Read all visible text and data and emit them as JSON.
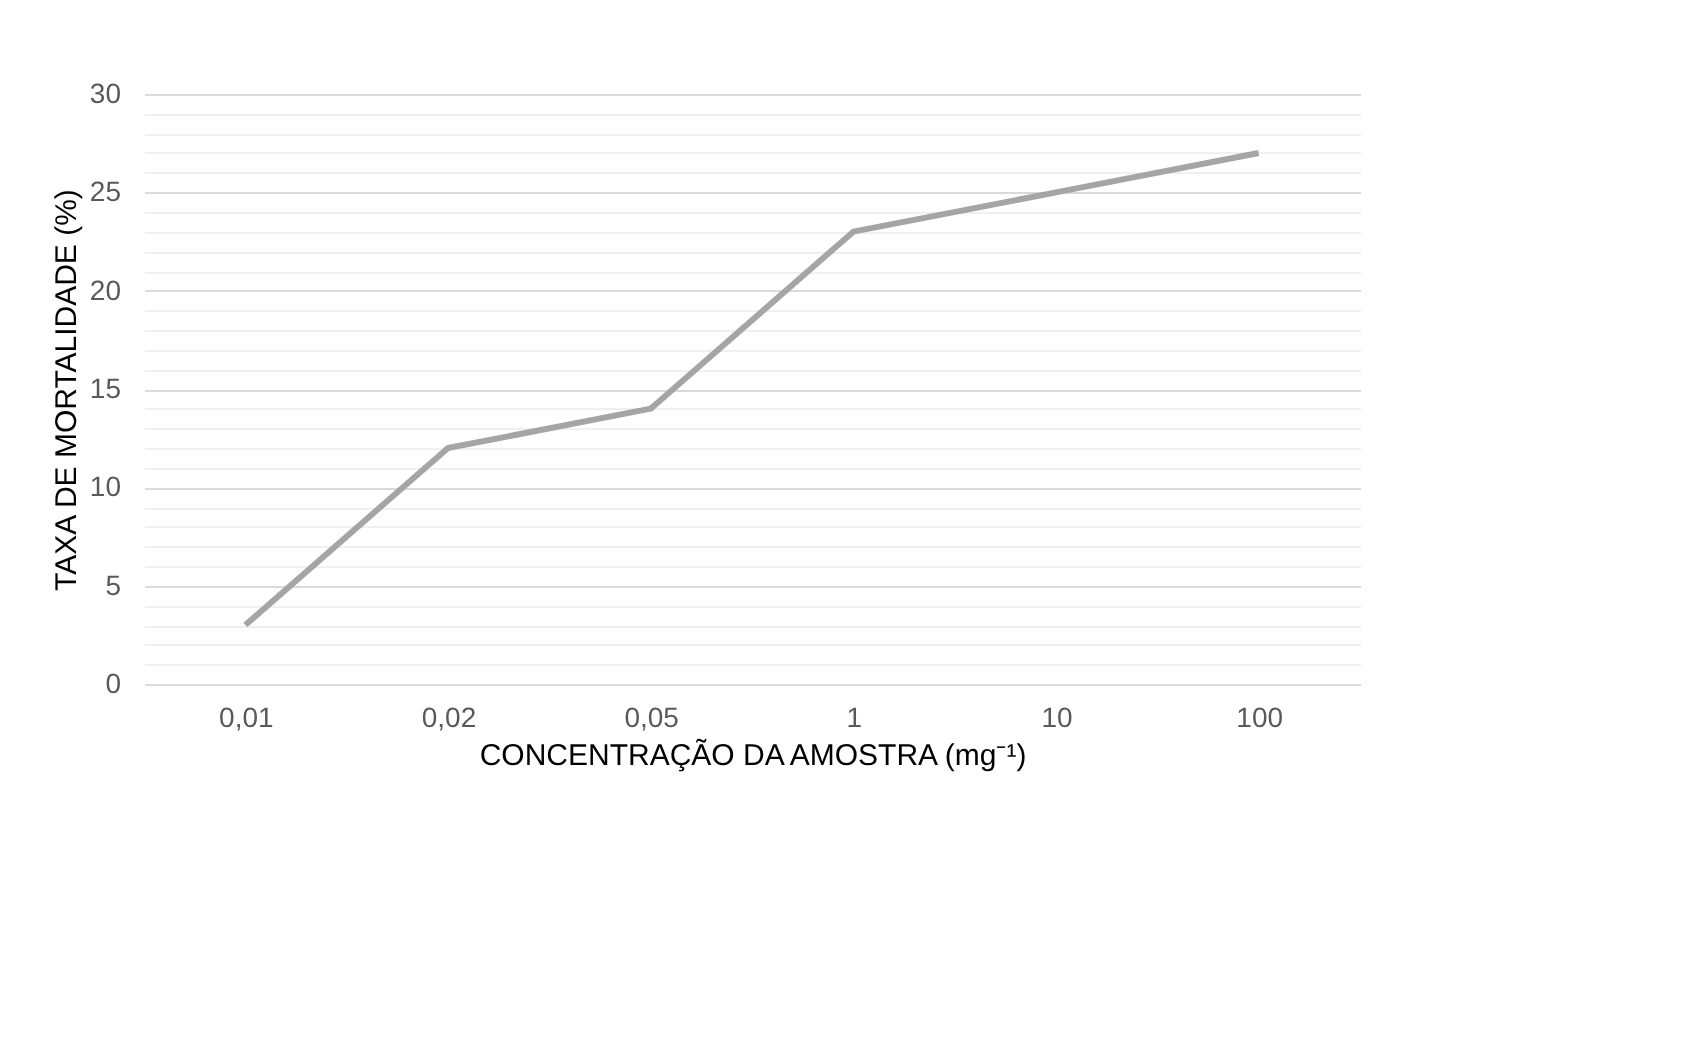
{
  "chart_data": {
    "type": "line",
    "xlabel": "CONCENTRAÇÃO DA AMOSTRA (mg⁻¹)",
    "ylabel": "TAXA DE MORTALIDADE (%)",
    "categories": [
      "0,01",
      "0,02",
      "0,05",
      "1",
      "10",
      "100"
    ],
    "series": [
      {
        "color": "#a5a5a5",
        "values": [
          3,
          12,
          14,
          23,
          25,
          27
        ]
      }
    ],
    "ylim": [
      0,
      30
    ],
    "yticks": [
      0,
      {
        "value": 1,
        "label": null
      },
      {
        "value": 2,
        "label": null
      },
      {
        "value": 3,
        "label": null
      },
      {
        "value": 4,
        "label": null
      },
      5,
      {
        "value": 6,
        "label": null
      },
      {
        "value": 7,
        "label": null
      },
      {
        "value": 8,
        "label": null
      },
      {
        "value": 9,
        "label": null
      },
      10,
      {
        "value": 11,
        "label": null
      },
      {
        "value": 12,
        "label": null
      },
      {
        "value": 13,
        "label": null
      },
      {
        "value": 14,
        "label": null
      },
      15,
      {
        "value": 16,
        "label": null
      },
      {
        "value": 17,
        "label": null
      },
      {
        "value": 18,
        "label": null
      },
      {
        "value": 19,
        "label": null
      },
      20,
      {
        "value": 21,
        "label": null
      },
      {
        "value": 22,
        "label": null
      },
      {
        "value": 23,
        "label": null
      },
      {
        "value": 24,
        "label": null
      },
      25,
      {
        "value": 26,
        "label": null
      },
      {
        "value": 27,
        "label": null
      },
      {
        "value": 28,
        "label": null
      },
      {
        "value": 29,
        "label": null
      },
      30
    ],
    "grid": "y",
    "legend": false,
    "marker": "none",
    "line_style": "solid"
  }
}
